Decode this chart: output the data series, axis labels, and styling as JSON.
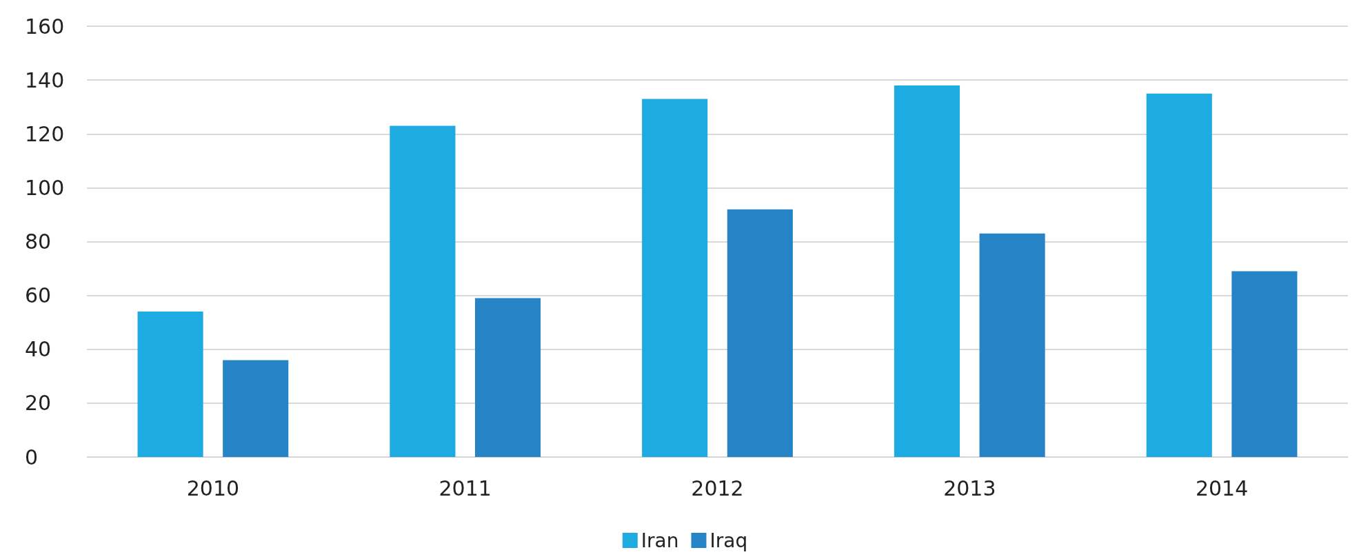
{
  "chart_data": {
    "type": "bar",
    "categories": [
      "2010",
      "2011",
      "2012",
      "2013",
      "2014"
    ],
    "series": [
      {
        "name": "Iran",
        "color": "#1eabe2",
        "values": [
          54,
          123,
          133,
          138,
          135
        ]
      },
      {
        "name": "Iraq",
        "color": "#2683c6",
        "values": [
          36,
          59,
          92,
          83,
          69
        ]
      }
    ],
    "ylim": [
      0,
      160
    ],
    "yticks": [
      0,
      20,
      40,
      60,
      80,
      100,
      120,
      140,
      160
    ],
    "grid": "y",
    "legend": "bottom"
  }
}
